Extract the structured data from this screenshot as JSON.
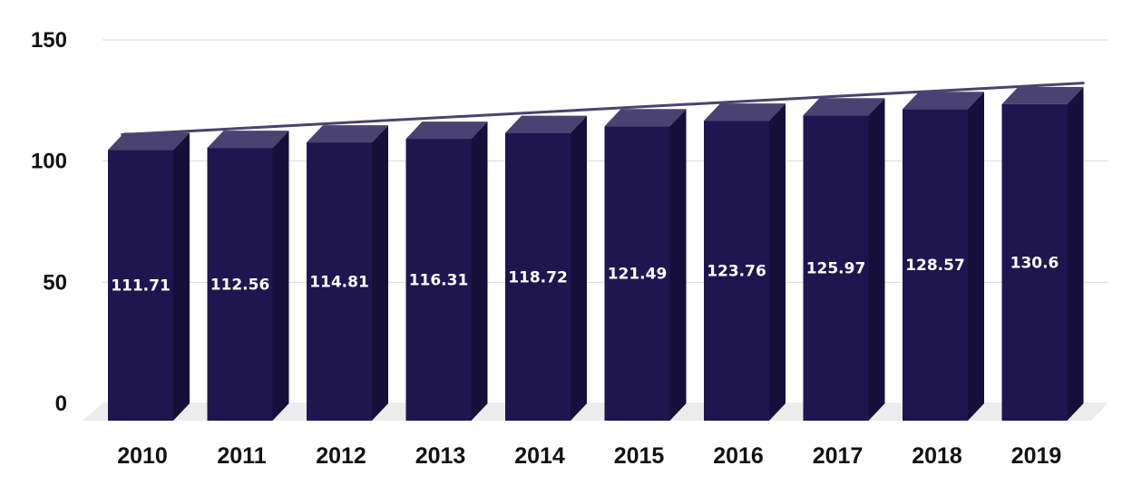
{
  "chart_data": {
    "type": "bar",
    "title": "",
    "xlabel": "",
    "ylabel": "",
    "categories": [
      "2010",
      "2011",
      "2012",
      "2013",
      "2014",
      "2015",
      "2016",
      "2017",
      "2018",
      "2019"
    ],
    "values": [
      111.71,
      112.56,
      114.81,
      116.31,
      118.72,
      121.49,
      123.76,
      125.97,
      128.57,
      130.6
    ],
    "value_labels": [
      "111.71",
      "112.56",
      "114.81",
      "116.31",
      "118.72",
      "121.49",
      "123.76",
      "125.97",
      "128.57",
      "130.6"
    ],
    "ylim": [
      0,
      150
    ],
    "yticks": [
      "0",
      "50",
      "100",
      "150"
    ],
    "grid": true,
    "legend": "none",
    "trendline": true,
    "style": "3d-bars",
    "colors": {
      "bar_front": "#1f1650",
      "bar_side": "#160f3a",
      "bar_top": "#4a4270",
      "trendline": "#4a4270",
      "grid": "#d9d9d9",
      "floor": "#ececec"
    }
  }
}
